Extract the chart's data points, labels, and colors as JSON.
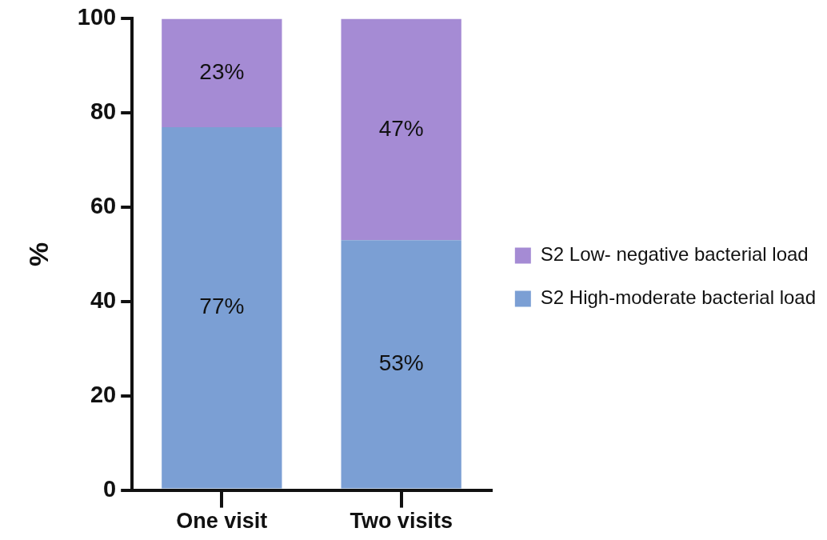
{
  "chart_data": {
    "type": "bar",
    "stacked": true,
    "ylabel": "%",
    "categories": [
      "One visit",
      "Two visits"
    ],
    "series": [
      {
        "name": "S2 High-moderate bacterial load",
        "color": "#7b9fd4",
        "values": [
          77,
          53
        ],
        "value_labels": [
          "77%",
          "53%"
        ]
      },
      {
        "name": "S2 Low- negative bacterial load",
        "color": "#a58bd4",
        "values": [
          23,
          47
        ],
        "value_labels": [
          "23%",
          "47%"
        ]
      }
    ],
    "ylim": [
      0,
      100
    ],
    "yticks": [
      0,
      20,
      40,
      60,
      80,
      100
    ],
    "grid": false,
    "legend": "right"
  }
}
